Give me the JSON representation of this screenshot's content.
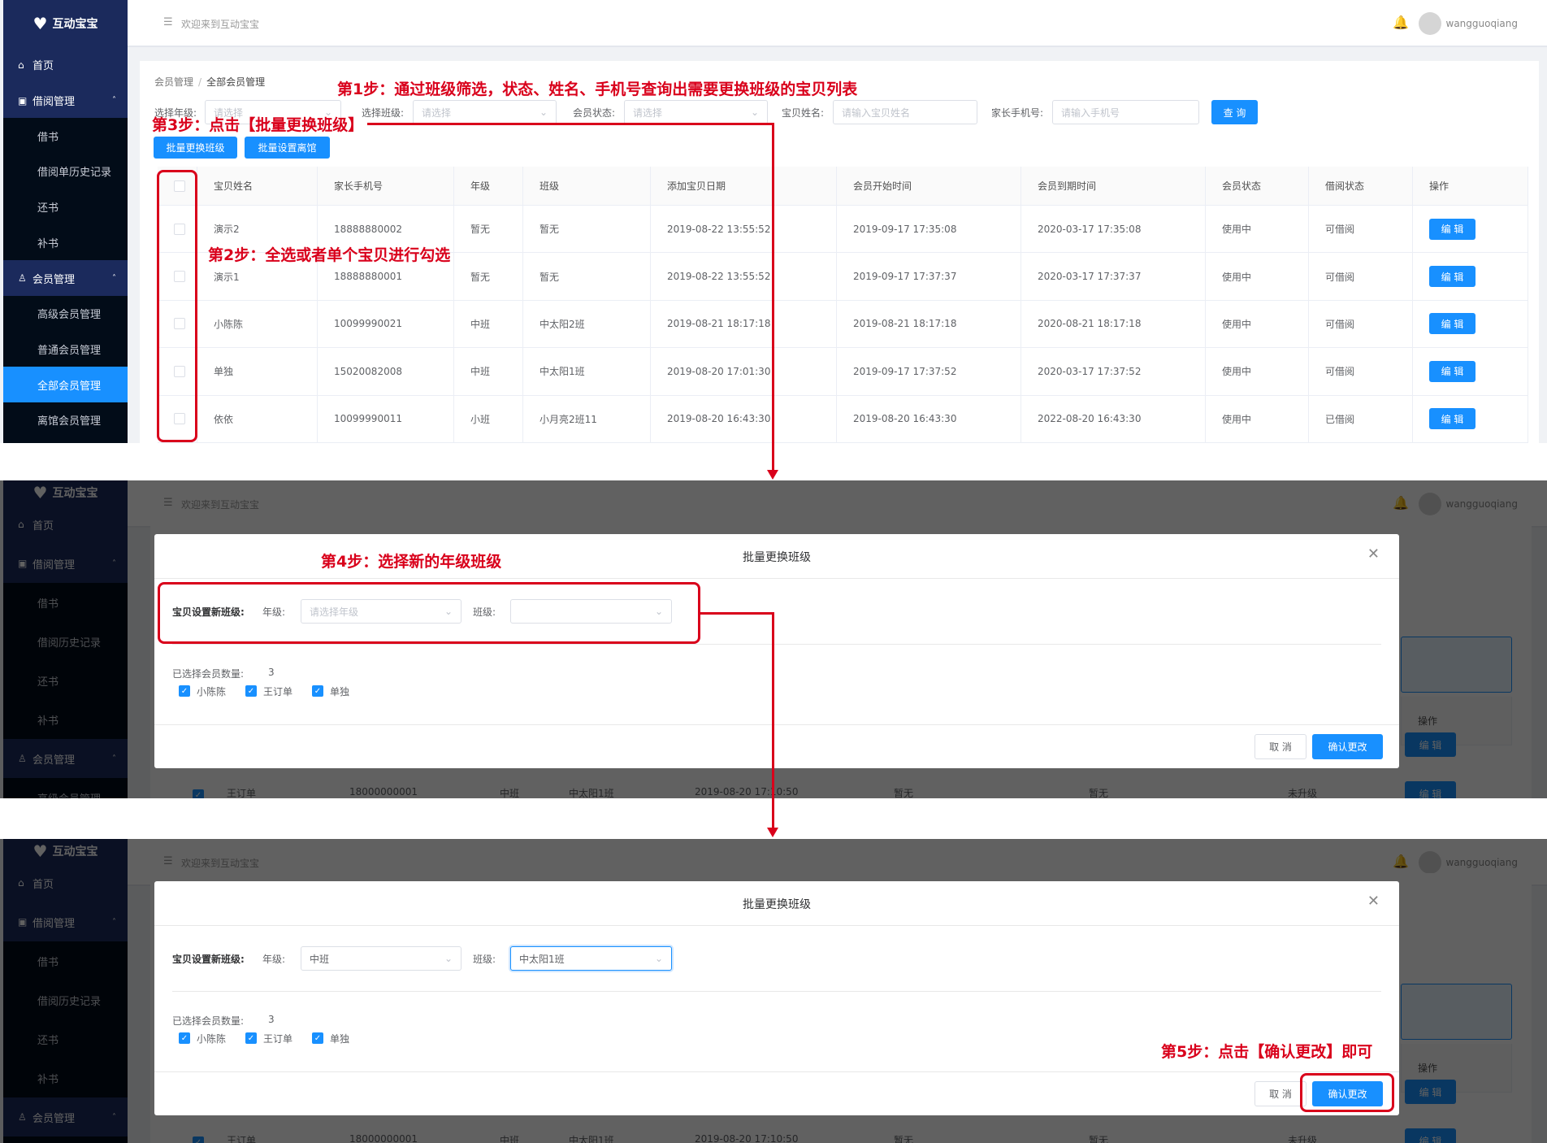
{
  "colors": {
    "accent": "#1890ff",
    "sidebar": "#1b2a5c",
    "sidebar_sub": "#020c18",
    "annotation": "#d9001b"
  },
  "app": {
    "logo_text": "互动宝宝"
  },
  "header": {
    "welcome": "欢迎来到互动宝宝",
    "username": "wangguoqiang",
    "menu_icon": "menu-icon",
    "bell_icon": "bell-icon"
  },
  "sidebar_main": [
    {
      "label": "首页",
      "type": "top",
      "icon": "home-icon"
    },
    {
      "label": "借阅管理",
      "type": "group",
      "icon": "book-icon"
    },
    {
      "label": "借书",
      "type": "sub"
    },
    {
      "label": "借阅单历史记录",
      "type": "sub"
    },
    {
      "label": "还书",
      "type": "sub"
    },
    {
      "label": "补书",
      "type": "sub"
    },
    {
      "label": "会员管理",
      "type": "group",
      "icon": "user-icon"
    },
    {
      "label": "高级会员管理",
      "type": "sub"
    },
    {
      "label": "普通会员管理",
      "type": "sub"
    },
    {
      "label": "全部会员管理",
      "type": "sub",
      "active": true
    },
    {
      "label": "离馆会员管理",
      "type": "sub"
    }
  ],
  "sidebar_dimmed": [
    {
      "label": "首页",
      "type": "top",
      "icon": "home-icon"
    },
    {
      "label": "借阅管理",
      "type": "group",
      "icon": "book-icon"
    },
    {
      "label": "借书",
      "type": "sub"
    },
    {
      "label": "借阅历史记录",
      "type": "sub"
    },
    {
      "label": "还书",
      "type": "sub"
    },
    {
      "label": "补书",
      "type": "sub"
    },
    {
      "label": "会员管理",
      "type": "group",
      "icon": "user-icon"
    },
    {
      "label": "高级会员管理",
      "type": "sub"
    }
  ],
  "page": {
    "breadcrumb": [
      "会员管理",
      "全部会员管理"
    ],
    "filters": {
      "grade_label": "选择年级:",
      "grade_placeholder": "请选择",
      "class_label": "选择班级:",
      "class_placeholder": "请选择",
      "status_label": "会员状态:",
      "status_placeholder": "请选择",
      "name_label": "宝贝姓名:",
      "name_placeholder": "请输入宝贝姓名",
      "phone_label": "家长手机号:",
      "phone_placeholder": "请输入手机号",
      "query": "查 询"
    },
    "actions": {
      "batch_change_class": "批量更换班级",
      "batch_set_leave": "批量设置离馆"
    },
    "table": {
      "headers": [
        "",
        "宝贝姓名",
        "家长手机号",
        "年级",
        "班级",
        "添加宝贝日期",
        "会员开始时间",
        "会员到期时间",
        "会员状态",
        "借阅状态",
        "操作"
      ],
      "rows": [
        [
          "演示2",
          "18888880002",
          "暂无",
          "暂无",
          "2019-08-22 13:55:52",
          "2019-09-17 17:35:08",
          "2020-03-17 17:35:08",
          "使用中",
          "可借阅"
        ],
        [
          "演示1",
          "18888880001",
          "暂无",
          "暂无",
          "2019-08-22 13:55:52",
          "2019-09-17 17:37:37",
          "2020-03-17 17:37:37",
          "使用中",
          "可借阅"
        ],
        [
          "小陈陈",
          "10099990021",
          "中班",
          "中太阳2班",
          "2019-08-21 18:17:18",
          "2019-08-21 18:17:18",
          "2020-08-21 18:17:18",
          "使用中",
          "可借阅"
        ],
        [
          "单独",
          "15020082008",
          "中班",
          "中太阳1班",
          "2019-08-20 17:01:30",
          "2019-09-17 17:37:52",
          "2020-03-17 17:37:52",
          "使用中",
          "可借阅"
        ],
        [
          "依依",
          "10099990011",
          "小班",
          "小月亮2班11",
          "2019-08-20 16:43:30",
          "2019-08-20 16:43:30",
          "2022-08-20 16:43:30",
          "使用中",
          "已借阅"
        ]
      ],
      "edit_label": "编 辑"
    },
    "background_row": [
      "王订单",
      "18000000001",
      "中班",
      "中太阳1班",
      "2019-08-20 17:10:50",
      "暂无",
      "暂无",
      "未升级"
    ],
    "background_op_header": "操作"
  },
  "modal": {
    "title": "批量更换班级",
    "form_label": "宝贝设置新班级:",
    "grade_label": "年级:",
    "grade_placeholder": "请选择年级",
    "class_label": "班级:",
    "selected_label": "已选择会员数量:",
    "selected_count": "3",
    "members": [
      "小陈陈",
      "王订单",
      "单独"
    ],
    "cancel": "取 消",
    "confirm": "确认更改",
    "filled_grade": "中班",
    "filled_class": "中太阳1班"
  },
  "annotations": {
    "step1": "第1步：通过班级筛选，状态、姓名、手机号查询出需要更换班级的宝贝列表",
    "step2": "第2步：全选或者单个宝贝进行勾选",
    "step3": "第3步：点击【批量更换班级】",
    "step4": "第4步：选择新的年级班级",
    "step5": "第5步：点击【确认更改】即可"
  }
}
